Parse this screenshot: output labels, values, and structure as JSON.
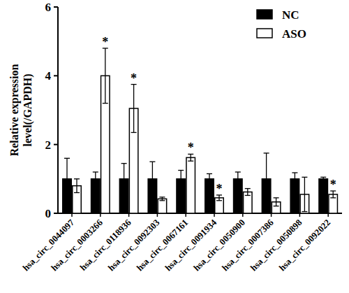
{
  "chart_data": {
    "type": "bar",
    "y_label": [
      "Relative expression",
      "level(/GAPDH)"
    ],
    "categories": [
      "hsa_circ_0044097",
      "hsa_circ_0003266",
      "hsa_circ_0118936",
      "hsa_circ_0092303",
      "hsa_circ_0067161",
      "hsa_circ_0091934",
      "hsa_circ_0050900",
      "hsa_circ_0007386",
      "hsa_circ_0050898",
      "hsa_circ_0092022"
    ],
    "series": [
      {
        "name": "NC",
        "color": "#000000",
        "values": [
          1,
          1,
          1,
          1,
          1,
          1,
          1,
          1,
          1,
          1
        ],
        "errors": [
          0.6,
          0.2,
          0.45,
          0.5,
          0.25,
          0.15,
          0.2,
          0.75,
          0.18,
          0.05
        ]
      },
      {
        "name": "ASO",
        "color": "#ffffff",
        "values": [
          0.8,
          4.0,
          3.05,
          0.42,
          1.62,
          0.45,
          0.62,
          0.33,
          0.55,
          0.55
        ],
        "errors": [
          0.2,
          0.8,
          0.7,
          0.05,
          0.1,
          0.08,
          0.1,
          0.12,
          0.5,
          0.1
        ],
        "annotations": [
          null,
          "*",
          "*",
          null,
          "*",
          "*",
          null,
          null,
          null,
          "*"
        ]
      }
    ],
    "ylim": [
      0,
      6
    ],
    "yticks": [
      0,
      2,
      4,
      6
    ],
    "grid": false,
    "legend": "top-right"
  }
}
